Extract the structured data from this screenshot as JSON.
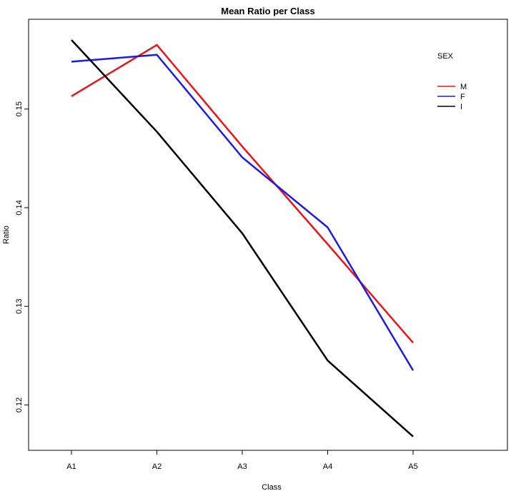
{
  "chart_data": {
    "type": "line",
    "title": "Mean Ratio per Class",
    "xlabel": "Class",
    "ylabel": "Ratio",
    "categories": [
      "A1",
      "A2",
      "A3",
      "A4",
      "A5"
    ],
    "yticks": [
      0.12,
      0.13,
      0.14,
      0.15
    ],
    "ytick_labels": [
      "0.12",
      "0.13",
      "0.14",
      "0.15"
    ],
    "ylim": [
      0.1154,
      0.1591
    ],
    "legend": {
      "title": "SEX",
      "position": "top-right"
    },
    "series": [
      {
        "name": "M",
        "color": "#e8141c",
        "values": [
          0.1513,
          0.1565,
          0.1462,
          0.1363,
          0.1263
        ]
      },
      {
        "name": "F",
        "color": "#1c1ce0",
        "values": [
          0.1548,
          0.1555,
          0.1451,
          0.138,
          0.1235
        ]
      },
      {
        "name": "I",
        "color": "#000000",
        "values": [
          0.157,
          0.1477,
          0.1374,
          0.1245,
          0.1168
        ]
      }
    ]
  }
}
